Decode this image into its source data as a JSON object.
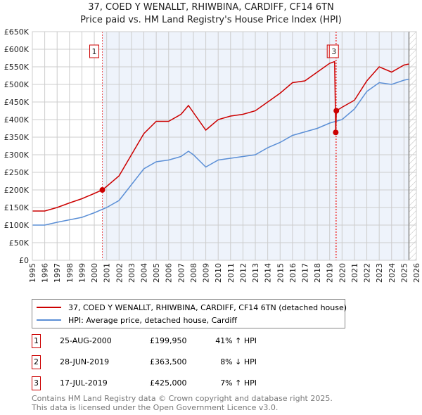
{
  "chart_data": {
    "type": "line",
    "title": "37, COED Y WENALLT, RHIWBINA, CARDIFF, CF14 6TN",
    "subtitle": "Price paid vs. HM Land Registry's House Price Index (HPI)",
    "xlim": [
      1995,
      2026
    ],
    "ylim": [
      0,
      650000
    ],
    "x_ticks": [
      "1995",
      "1996",
      "1997",
      "1998",
      "1999",
      "2000",
      "2001",
      "2002",
      "2003",
      "2004",
      "2005",
      "2006",
      "2007",
      "2008",
      "2009",
      "2010",
      "2011",
      "2012",
      "2013",
      "2014",
      "2015",
      "2016",
      "2017",
      "2018",
      "2019",
      "2020",
      "2021",
      "2022",
      "2023",
      "2024",
      "2025",
      "2026"
    ],
    "y_ticks": [
      {
        "v": 0,
        "label": "£0"
      },
      {
        "v": 50000,
        "label": "£50K"
      },
      {
        "v": 100000,
        "label": "£100K"
      },
      {
        "v": 150000,
        "label": "£150K"
      },
      {
        "v": 200000,
        "label": "£200K"
      },
      {
        "v": 250000,
        "label": "£250K"
      },
      {
        "v": 300000,
        "label": "£300K"
      },
      {
        "v": 350000,
        "label": "£350K"
      },
      {
        "v": 400000,
        "label": "£400K"
      },
      {
        "v": 450000,
        "label": "£450K"
      },
      {
        "v": 500000,
        "label": "£500K"
      },
      {
        "v": 550000,
        "label": "£550K"
      },
      {
        "v": 600000,
        "label": "£600K"
      },
      {
        "v": 650000,
        "label": "£650K"
      }
    ],
    "grid": true,
    "shaded_range": [
      2000.65,
      2025.4
    ],
    "hatched_from": 2025.4,
    "series": [
      {
        "name": "37, COED Y WENALLT, RHIWBINA, CARDIFF, CF14 6TN (detached house)",
        "color": "#cc0000",
        "x": [
          1995,
          1996,
          1997,
          1998,
          1999,
          2000,
          2000.65,
          2001,
          2002,
          2003,
          2004,
          2005,
          2006,
          2007,
          2007.6,
          2008,
          2009,
          2010,
          2011,
          2012,
          2013,
          2014,
          2015,
          2016,
          2017,
          2018,
          2019,
          2019.4,
          2019.49,
          2019.54,
          2020,
          2021,
          2022,
          2023,
          2024,
          2025,
          2025.4
        ],
        "y": [
          140000,
          140000,
          150000,
          163000,
          175000,
          190000,
          199950,
          210000,
          240000,
          300000,
          360000,
          395000,
          395000,
          415000,
          440000,
          420000,
          370000,
          400000,
          410000,
          415000,
          425000,
          450000,
          475000,
          505000,
          510000,
          535000,
          560000,
          565000,
          363500,
          425000,
          435000,
          455000,
          510000,
          550000,
          535000,
          555000,
          558000
        ]
      },
      {
        "name": "HPI: Average price, detached house, Cardiff",
        "color": "#5b8fd6",
        "x": [
          1995,
          1996,
          1997,
          1998,
          1999,
          2000,
          2001,
          2002,
          2003,
          2004,
          2005,
          2006,
          2007,
          2007.6,
          2008,
          2009,
          2010,
          2011,
          2012,
          2013,
          2014,
          2015,
          2016,
          2017,
          2018,
          2019,
          2020,
          2021,
          2022,
          2023,
          2024,
          2025,
          2025.4
        ],
        "y": [
          100000,
          100000,
          108000,
          115000,
          122000,
          135000,
          150000,
          170000,
          215000,
          260000,
          280000,
          285000,
          295000,
          310000,
          300000,
          265000,
          285000,
          290000,
          295000,
          300000,
          320000,
          335000,
          355000,
          365000,
          375000,
          390000,
          400000,
          430000,
          480000,
          505000,
          500000,
          512000,
          515000
        ]
      }
    ],
    "annotations": [
      {
        "label": "1",
        "x": 2000.65,
        "y": 199950
      },
      {
        "label": "2",
        "x": 2019.49,
        "y": 363500
      },
      {
        "label": "3",
        "x": 2019.54,
        "y": 425000
      }
    ]
  },
  "legend": {
    "items": [
      "37, COED Y WENALLT, RHIWBINA, CARDIFF, CF14 6TN (detached house)",
      "HPI: Average price, detached house, Cardiff"
    ]
  },
  "transactions": [
    {
      "num": "1",
      "date": "25-AUG-2000",
      "price": "£199,950",
      "hpi": "41% ↑ HPI"
    },
    {
      "num": "2",
      "date": "28-JUN-2019",
      "price": "£363,500",
      "hpi": "8% ↓ HPI"
    },
    {
      "num": "3",
      "date": "17-JUL-2019",
      "price": "£425,000",
      "hpi": "7% ↑ HPI"
    }
  ],
  "footer": {
    "line1": "Contains HM Land Registry data © Crown copyright and database right 2025.",
    "line2": "This data is licensed under the Open Government Licence v3.0."
  }
}
